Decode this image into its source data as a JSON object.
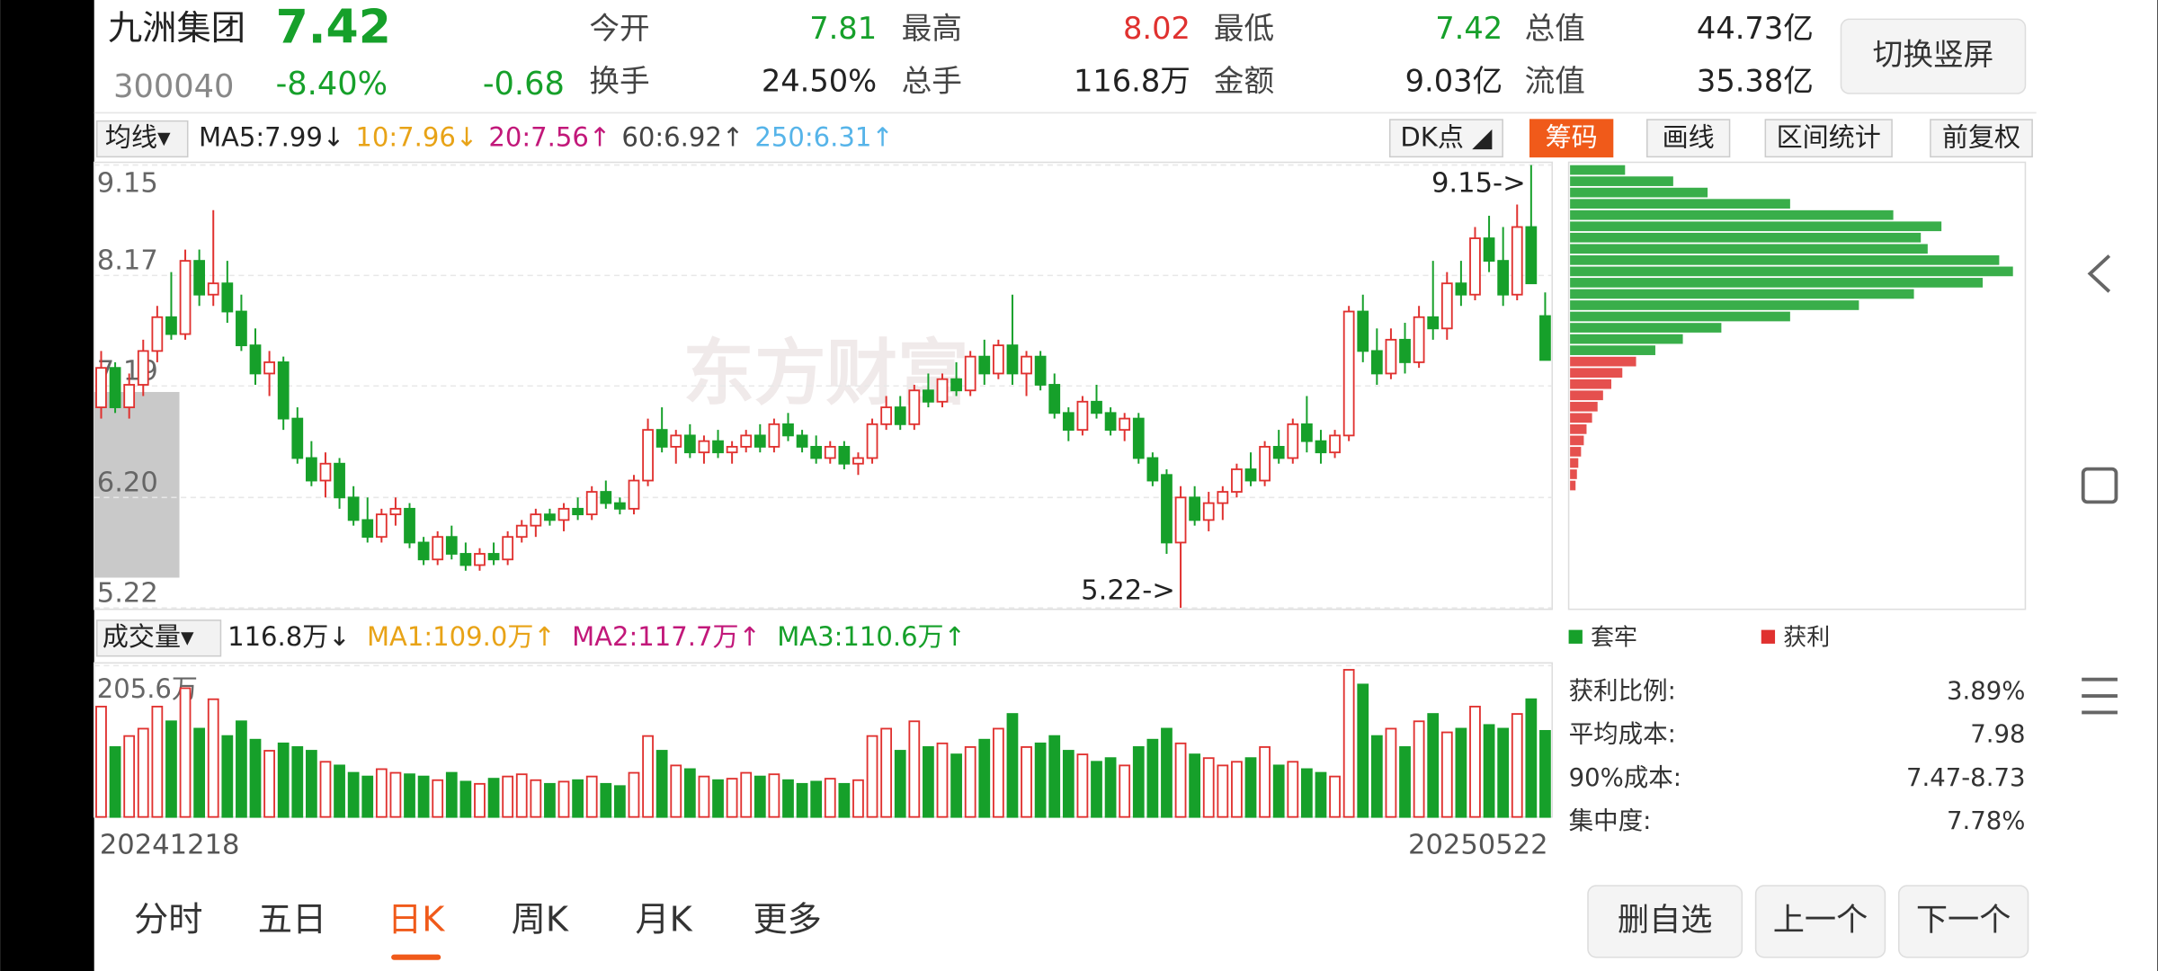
{
  "header": {
    "name": "九洲集团",
    "price": "7.42",
    "code": "300040",
    "change_pct": "-8.40%",
    "change": "-0.68",
    "fields": [
      [
        "今开",
        "7.81"
      ],
      [
        "最高",
        "8.02"
      ],
      [
        "最低",
        "7.42"
      ],
      [
        "总值",
        "44.73亿"
      ],
      [
        "换手",
        "24.50%"
      ],
      [
        "总手",
        "116.8万"
      ],
      [
        "金额",
        "9.03亿"
      ],
      [
        "流值",
        "35.38亿"
      ]
    ],
    "button": "切换竖屏"
  },
  "toolbar": {
    "ma_select": "均线▾",
    "ma": [
      {
        "text": "MA5:7.99↓",
        "color": "#222222"
      },
      {
        "text": "10:7.96↓",
        "color": "#e8a317"
      },
      {
        "text": "20:7.56↑",
        "color": "#c2187a"
      },
      {
        "text": "60:6.92↑",
        "color": "#444444"
      },
      {
        "text": "250:6.31↑",
        "color": "#56b4e9"
      }
    ],
    "tools": [
      "DK点 ◢",
      "筹码",
      "画线",
      "区间统计",
      "前复权"
    ],
    "active_tool": 1
  },
  "chart_data": {
    "type": "candlestick",
    "watermark": "东方财富",
    "ylim": [
      5.22,
      9.15
    ],
    "yticks": [
      5.22,
      {
        "value": 6.2,
        "label": "6.20"
      },
      7.19,
      8.17,
      9.15
    ],
    "annotations": [
      "9.15->",
      "5.22->"
    ],
    "x_labels": [
      "20241218",
      "20250522"
    ],
    "kline": [
      [
        7.0,
        7.5,
        6.9,
        7.35
      ],
      [
        7.35,
        7.4,
        6.95,
        7.0
      ],
      [
        7.0,
        7.3,
        6.9,
        7.2
      ],
      [
        7.2,
        7.6,
        7.1,
        7.5
      ],
      [
        7.5,
        7.9,
        7.4,
        7.8
      ],
      [
        7.8,
        8.2,
        7.6,
        7.65
      ],
      [
        7.65,
        8.4,
        7.6,
        8.3
      ],
      [
        8.3,
        8.4,
        7.9,
        8.0
      ],
      [
        8.0,
        8.75,
        7.9,
        8.1
      ],
      [
        8.1,
        8.3,
        7.75,
        7.85
      ],
      [
        7.85,
        8.0,
        7.5,
        7.55
      ],
      [
        7.55,
        7.7,
        7.2,
        7.3
      ],
      [
        7.3,
        7.5,
        7.1,
        7.4
      ],
      [
        7.4,
        7.45,
        6.8,
        6.9
      ],
      [
        6.9,
        7.0,
        6.5,
        6.55
      ],
      [
        6.55,
        6.7,
        6.3,
        6.35
      ],
      [
        6.35,
        6.6,
        6.2,
        6.5
      ],
      [
        6.5,
        6.55,
        6.1,
        6.2
      ],
      [
        6.2,
        6.3,
        5.95,
        6.0
      ],
      [
        6.0,
        6.2,
        5.8,
        5.85
      ],
      [
        5.85,
        6.1,
        5.8,
        6.05
      ],
      [
        6.05,
        6.2,
        5.95,
        6.1
      ],
      [
        6.1,
        6.15,
        5.75,
        5.8
      ],
      [
        5.8,
        5.85,
        5.6,
        5.65
      ],
      [
        5.65,
        5.9,
        5.6,
        5.85
      ],
      [
        5.85,
        5.95,
        5.65,
        5.7
      ],
      [
        5.7,
        5.8,
        5.55,
        5.6
      ],
      [
        5.6,
        5.75,
        5.55,
        5.7
      ],
      [
        5.7,
        5.8,
        5.6,
        5.65
      ],
      [
        5.65,
        5.9,
        5.6,
        5.85
      ],
      [
        5.85,
        6.0,
        5.8,
        5.95
      ],
      [
        5.95,
        6.1,
        5.85,
        6.05
      ],
      [
        6.05,
        6.1,
        5.95,
        6.0
      ],
      [
        6.0,
        6.15,
        5.9,
        6.1
      ],
      [
        6.1,
        6.2,
        6.0,
        6.05
      ],
      [
        6.05,
        6.3,
        6.0,
        6.25
      ],
      [
        6.25,
        6.35,
        6.1,
        6.15
      ],
      [
        6.15,
        6.2,
        6.05,
        6.1
      ],
      [
        6.1,
        6.4,
        6.05,
        6.35
      ],
      [
        6.35,
        6.9,
        6.3,
        6.8
      ],
      [
        6.8,
        7.0,
        6.6,
        6.65
      ],
      [
        6.65,
        6.8,
        6.5,
        6.75
      ],
      [
        6.75,
        6.85,
        6.55,
        6.6
      ],
      [
        6.6,
        6.75,
        6.5,
        6.7
      ],
      [
        6.7,
        6.8,
        6.55,
        6.6
      ],
      [
        6.6,
        6.7,
        6.5,
        6.65
      ],
      [
        6.65,
        6.8,
        6.6,
        6.75
      ],
      [
        6.75,
        6.85,
        6.6,
        6.65
      ],
      [
        6.65,
        6.9,
        6.6,
        6.85
      ],
      [
        6.85,
        6.95,
        6.7,
        6.75
      ],
      [
        6.75,
        6.8,
        6.6,
        6.65
      ],
      [
        6.65,
        6.75,
        6.5,
        6.55
      ],
      [
        6.55,
        6.7,
        6.5,
        6.65
      ],
      [
        6.65,
        6.7,
        6.45,
        6.5
      ],
      [
        6.5,
        6.6,
        6.4,
        6.55
      ],
      [
        6.55,
        6.9,
        6.5,
        6.85
      ],
      [
        6.85,
        7.1,
        6.8,
        7.0
      ],
      [
        7.0,
        7.1,
        6.8,
        6.85
      ],
      [
        6.85,
        7.2,
        6.8,
        7.15
      ],
      [
        7.15,
        7.3,
        7.0,
        7.05
      ],
      [
        7.05,
        7.3,
        7.0,
        7.25
      ],
      [
        7.25,
        7.4,
        7.1,
        7.15
      ],
      [
        7.15,
        7.5,
        7.1,
        7.45
      ],
      [
        7.45,
        7.6,
        7.2,
        7.3
      ],
      [
        7.3,
        7.6,
        7.25,
        7.55
      ],
      [
        7.55,
        8.0,
        7.2,
        7.3
      ],
      [
        7.3,
        7.5,
        7.1,
        7.45
      ],
      [
        7.45,
        7.5,
        7.15,
        7.2
      ],
      [
        7.2,
        7.3,
        6.9,
        6.95
      ],
      [
        6.95,
        7.0,
        6.7,
        6.8
      ],
      [
        6.8,
        7.1,
        6.75,
        7.05
      ],
      [
        7.05,
        7.2,
        6.9,
        6.95
      ],
      [
        6.95,
        7.0,
        6.75,
        6.8
      ],
      [
        6.8,
        6.95,
        6.7,
        6.9
      ],
      [
        6.9,
        6.95,
        6.5,
        6.55
      ],
      [
        6.55,
        6.6,
        6.3,
        6.35
      ],
      [
        6.4,
        6.45,
        5.7,
        5.8
      ],
      [
        5.8,
        6.3,
        5.22,
        6.2
      ],
      [
        6.2,
        6.3,
        5.95,
        6.0
      ],
      [
        6.0,
        6.25,
        5.9,
        6.15
      ],
      [
        6.15,
        6.3,
        6.0,
        6.25
      ],
      [
        6.25,
        6.5,
        6.2,
        6.45
      ],
      [
        6.45,
        6.6,
        6.3,
        6.35
      ],
      [
        6.35,
        6.7,
        6.3,
        6.65
      ],
      [
        6.65,
        6.8,
        6.5,
        6.55
      ],
      [
        6.55,
        6.9,
        6.5,
        6.85
      ],
      [
        6.85,
        7.1,
        6.6,
        6.7
      ],
      [
        6.7,
        6.8,
        6.5,
        6.6
      ],
      [
        6.6,
        6.8,
        6.55,
        6.75
      ],
      [
        6.75,
        7.9,
        6.7,
        7.85
      ],
      [
        7.85,
        8.0,
        7.4,
        7.5
      ],
      [
        7.5,
        7.7,
        7.2,
        7.3
      ],
      [
        7.3,
        7.7,
        7.25,
        7.6
      ],
      [
        7.6,
        7.75,
        7.3,
        7.4
      ],
      [
        7.4,
        7.9,
        7.35,
        7.8
      ],
      [
        7.8,
        8.3,
        7.6,
        7.7
      ],
      [
        7.7,
        8.2,
        7.6,
        8.1
      ],
      [
        8.1,
        8.3,
        7.9,
        8.0
      ],
      [
        8.0,
        8.6,
        7.95,
        8.5
      ],
      [
        8.5,
        8.7,
        8.2,
        8.3
      ],
      [
        8.3,
        8.6,
        7.9,
        8.0
      ],
      [
        8.0,
        8.8,
        7.95,
        8.6
      ],
      [
        8.6,
        9.15,
        8.3,
        8.1
      ],
      [
        7.81,
        8.02,
        7.42,
        7.42
      ]
    ],
    "volume_header": [
      {
        "text": "116.8万↓",
        "color": "#222222"
      },
      {
        "text": "MA1:109.0万↑",
        "color": "#e8a317"
      },
      {
        "text": "MA2:117.7万↑",
        "color": "#c2187a"
      },
      {
        "text": "MA3:110.6万↑",
        "color": "#16a02a"
      }
    ],
    "volume_select": "成交量▾",
    "vlim": [
      0,
      205.6
    ],
    "vticks": [
      {
        "value": 205.6,
        "label": "205.6万"
      }
    ],
    "volume": [
      150,
      95,
      110,
      120,
      150,
      130,
      175,
      120,
      160,
      110,
      130,
      105,
      90,
      100,
      95,
      90,
      75,
      70,
      60,
      55,
      65,
      60,
      58,
      55,
      50,
      60,
      48,
      45,
      52,
      55,
      58,
      50,
      45,
      48,
      50,
      55,
      45,
      42,
      60,
      110,
      90,
      70,
      65,
      55,
      50,
      52,
      60,
      55,
      58,
      50,
      45,
      48,
      52,
      45,
      50,
      110,
      120,
      90,
      130,
      95,
      100,
      85,
      95,
      105,
      120,
      140,
      95,
      100,
      110,
      90,
      85,
      75,
      80,
      70,
      95,
      105,
      120,
      100,
      85,
      80,
      70,
      75,
      80,
      95,
      70,
      75,
      65,
      60,
      55,
      200,
      180,
      110,
      120,
      95,
      130,
      140,
      115,
      120,
      150,
      125,
      120,
      140,
      160,
      117
    ]
  },
  "chips": {
    "legend": [
      "套牢",
      "获利"
    ],
    "data": [
      [
        6.3,
        4
      ],
      [
        6.4,
        5
      ],
      [
        6.5,
        6
      ],
      [
        6.6,
        8
      ],
      [
        6.7,
        10
      ],
      [
        6.8,
        12
      ],
      [
        6.9,
        16
      ],
      [
        7.0,
        20
      ],
      [
        7.1,
        24
      ],
      [
        7.2,
        30
      ],
      [
        7.3,
        38
      ],
      [
        7.4,
        48
      ],
      [
        7.5,
        62
      ],
      [
        7.6,
        82
      ],
      [
        7.7,
        110
      ],
      [
        7.8,
        160
      ],
      [
        7.9,
        210
      ],
      [
        8.0,
        250
      ],
      [
        8.1,
        300
      ],
      [
        8.2,
        322
      ],
      [
        8.3,
        312
      ],
      [
        8.4,
        260
      ],
      [
        8.5,
        255
      ],
      [
        8.6,
        270
      ],
      [
        8.7,
        235
      ],
      [
        8.8,
        160
      ],
      [
        8.9,
        100
      ],
      [
        9.0,
        75
      ],
      [
        9.1,
        40
      ]
    ],
    "stats": [
      [
        "获利比例:",
        "3.89%"
      ],
      [
        "平均成本:",
        "7.98"
      ],
      [
        "90%成本:",
        "7.47-8.73"
      ],
      [
        "集中度:",
        "7.78%"
      ]
    ]
  },
  "tabs": {
    "items": [
      "分时",
      "五日",
      "日K",
      "周K",
      "月K",
      "更多"
    ],
    "active": 2
  },
  "buttons": [
    "删自选",
    "上一个",
    "下一个"
  ]
}
